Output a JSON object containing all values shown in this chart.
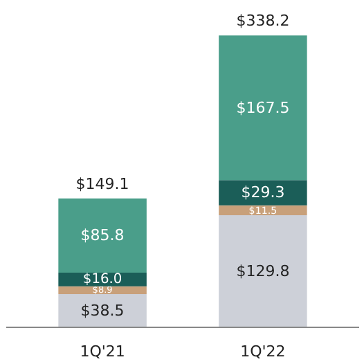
{
  "chart_data": {
    "type": "bar",
    "stacked": true,
    "categories": [
      "1Q'21",
      "1Q'22"
    ],
    "series": [
      {
        "color": "#cdd0d8",
        "values": [
          38.5,
          129.8
        ],
        "value_labels": [
          "$38.5",
          "$129.8"
        ]
      },
      {
        "color": "#c8a07a",
        "values": [
          8.9,
          11.5
        ],
        "value_labels": [
          "$8.9",
          "$11.5"
        ]
      },
      {
        "color": "#1b5e58",
        "values": [
          16.0,
          29.3
        ],
        "value_labels": [
          "$16.0",
          "$29.3"
        ]
      },
      {
        "color": "#4a9e8a",
        "values": [
          85.8,
          167.5
        ],
        "value_labels": [
          "$85.8",
          "$167.5"
        ]
      }
    ],
    "totals": [
      "$149.1",
      "$338.2"
    ],
    "grid": false
  }
}
